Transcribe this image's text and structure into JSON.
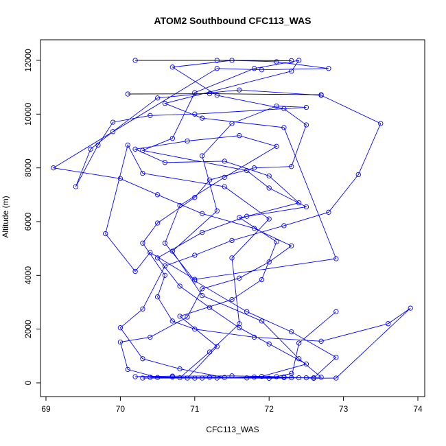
{
  "chart_data": {
    "type": "scatter",
    "title": "ATOM2 Southbound CFC113_WAS",
    "xlabel": "CFC113_WAS",
    "ylabel": "Altitude (m)",
    "xlim": [
      69,
      74
    ],
    "ylim": [
      0,
      12000
    ],
    "x_ticks": [
      "69",
      "70",
      "71",
      "72",
      "73",
      "74"
    ],
    "y_ticks": [
      "0",
      "2000",
      "4000",
      "6000",
      "8000",
      "10000",
      "12000"
    ],
    "grid": false,
    "legend": "none",
    "style": {
      "series_color": "#0000ff",
      "highlight_color": "#000000",
      "marker": "open-circle",
      "connected": true
    },
    "series": [
      {
        "points": [
          [
            72.9,
            2650
          ],
          [
            72.4,
            1480
          ],
          [
            72.3,
            190
          ],
          [
            71.2,
            210
          ],
          [
            70.9,
            180
          ],
          [
            71.3,
            1350
          ],
          [
            70.8,
            2480
          ],
          [
            71.5,
            3100
          ],
          [
            71.9,
            3840
          ],
          [
            72.1,
            5250
          ],
          [
            71.6,
            6150
          ],
          [
            72.5,
            6550
          ],
          [
            72.0,
            7250
          ],
          [
            71.7,
            7900
          ],
          [
            70.3,
            8650
          ],
          [
            70.7,
            9100
          ],
          [
            71.0,
            10800
          ],
          [
            71.8,
            11700
          ],
          [
            72.4,
            12000
          ],
          [
            72.3,
            11600
          ],
          [
            70.6,
            10400
          ],
          [
            71.1,
            9850
          ],
          [
            72.2,
            9500
          ],
          [
            72.9,
            4620
          ],
          [
            71.0,
            3850
          ],
          [
            70.4,
            4850
          ],
          [
            70.2,
            4150
          ],
          [
            69.8,
            5550
          ],
          [
            70.1,
            8850
          ],
          [
            70.3,
            7800
          ],
          [
            71.4,
            7300
          ],
          [
            72.0,
            6100
          ],
          [
            71.5,
            4650
          ],
          [
            71.6,
            2200
          ],
          [
            71.2,
            1150
          ],
          [
            70.8,
            190
          ],
          [
            70.4,
            210
          ],
          [
            72.0,
            170
          ],
          [
            72.4,
            190
          ],
          [
            72.7,
            210
          ],
          [
            72.4,
            900
          ],
          [
            71.9,
            2300
          ],
          [
            71.1,
            3250
          ],
          [
            70.7,
            4900
          ],
          [
            71.3,
            6400
          ],
          [
            71.1,
            8450
          ],
          [
            71.5,
            9650
          ],
          [
            72.1,
            10300
          ],
          [
            72.5,
            10250
          ],
          [
            71.0,
            10000
          ],
          [
            70.4,
            9950
          ],
          [
            69.9,
            9700
          ],
          [
            69.7,
            8850
          ],
          [
            69.4,
            7300
          ],
          [
            69.6,
            8700
          ],
          [
            69.9,
            9350
          ],
          [
            70.5,
            10600
          ],
          [
            71.6,
            10900
          ],
          [
            72.7,
            10700
          ],
          [
            73.5,
            9650
          ],
          [
            73.2,
            7750
          ],
          [
            72.8,
            6350
          ],
          [
            72.2,
            5850
          ],
          [
            71.5,
            5300
          ],
          [
            71.0,
            4750
          ],
          [
            70.6,
            4350
          ],
          [
            70.3,
            2750
          ],
          [
            70.0,
            2050
          ],
          [
            70.3,
            900
          ],
          [
            70.8,
            520
          ],
          [
            71.4,
            200
          ],
          [
            72.2,
            220
          ],
          [
            72.6,
            170
          ],
          [
            72.9,
            180
          ],
          [
            73.9,
            2780
          ],
          [
            73.6,
            2200
          ],
          [
            72.7,
            1550
          ],
          [
            71.8,
            1700
          ],
          [
            71.0,
            2000
          ],
          [
            70.7,
            2300
          ],
          [
            70.5,
            3200
          ],
          [
            70.6,
            4000
          ],
          [
            70.3,
            5200
          ],
          [
            70.5,
            5950
          ],
          [
            71.0,
            6900
          ],
          [
            71.2,
            7550
          ],
          [
            71.8,
            8000
          ],
          [
            72.3,
            8050
          ],
          [
            72.5,
            9600
          ],
          [
            72.2,
            10200
          ],
          [
            71.3,
            10700
          ],
          [
            70.7,
            11750
          ],
          [
            71.5,
            12000
          ],
          [
            72.1,
            11950
          ],
          [
            72.8,
            11700
          ],
          [
            71.9,
            11650
          ],
          [
            71.3,
            11700
          ],
          [
            69.1,
            8000
          ],
          [
            70.0,
            7600
          ],
          [
            70.5,
            7000
          ],
          [
            71.1,
            6300
          ],
          [
            71.8,
            5750
          ],
          [
            72.3,
            5100
          ],
          [
            72.0,
            4500
          ],
          [
            71.6,
            3900
          ],
          [
            71.1,
            3500
          ],
          [
            70.9,
            2450
          ],
          [
            70.4,
            1700
          ],
          [
            70.0,
            1520
          ],
          [
            70.1,
            500
          ],
          [
            70.5,
            200
          ],
          [
            71.1,
            180
          ],
          [
            71.8,
            220
          ],
          [
            72.2,
            200
          ],
          [
            72.6,
            190
          ],
          [
            72.9,
            950
          ],
          [
            72.3,
            1900
          ],
          [
            71.7,
            2650
          ],
          [
            71.0,
            3800
          ],
          [
            70.6,
            5200
          ],
          [
            70.8,
            6600
          ],
          [
            71.4,
            7650
          ],
          [
            72.1,
            8800
          ],
          [
            71.6,
            9200
          ],
          [
            70.9,
            9000
          ],
          [
            70.2,
            8700
          ],
          [
            70.6,
            8200
          ],
          [
            71.4,
            8250
          ],
          [
            72.0,
            7700
          ],
          [
            72.4,
            6700
          ],
          [
            71.7,
            6200
          ],
          [
            71.1,
            5600
          ],
          [
            70.5,
            4650
          ],
          [
            70.8,
            3600
          ],
          [
            71.2,
            2800
          ],
          [
            71.6,
            2050
          ],
          [
            72.0,
            1450
          ],
          [
            72.5,
            700
          ],
          [
            71.9,
            240
          ],
          [
            71.3,
            180
          ],
          [
            70.7,
            220
          ],
          [
            70.2,
            230
          ],
          [
            70.7,
            250
          ],
          [
            71.5,
            260
          ],
          [
            72.1,
            230
          ],
          [
            72.3,
            350
          ]
        ]
      },
      {
        "points": [
          [
            70.1,
            10750
          ],
          [
            71.2,
            10760
          ],
          [
            72.7,
            10720
          ]
        ]
      },
      {
        "points": [
          [
            70.2,
            12000
          ],
          [
            71.3,
            12000
          ],
          [
            72.3,
            11990
          ]
        ]
      },
      {
        "points": [
          [
            70.3,
            180
          ],
          [
            71.0,
            175
          ],
          [
            71.7,
            185
          ],
          [
            72.5,
            190
          ]
        ]
      }
    ]
  }
}
